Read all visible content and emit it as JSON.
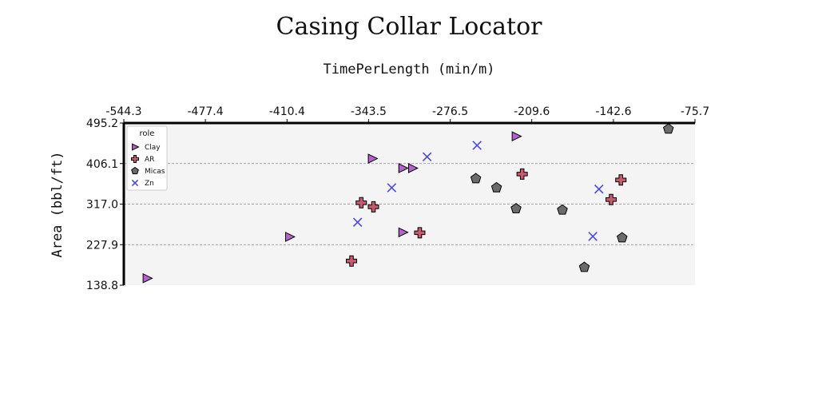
{
  "chart_data": {
    "type": "scatter",
    "title": "Casing Collar Locator",
    "xlabel": "TimePerLength (min/m)",
    "ylabel": "Area (bbl/ft)",
    "xlim": [
      -544.3,
      -75.7
    ],
    "ylim": [
      138.8,
      495.2
    ],
    "xticks": [
      "-544.3",
      "-477.4",
      "-410.4",
      "-343.5",
      "-276.5",
      "-209.6",
      "-142.6",
      "-75.7"
    ],
    "yticks": [
      "138.8",
      "227.9",
      "317.0",
      "406.1",
      "495.2"
    ],
    "x_axis_position": "top",
    "grid": "horizontal dashed",
    "legend": {
      "title": "role",
      "placement": "top-left"
    },
    "series": [
      {
        "name": "Clay",
        "marker": "triangle-right",
        "color": "#b660cd",
        "points": [
          [
            -525.3,
            154
          ],
          [
            -408.4,
            245
          ],
          [
            -340.5,
            417
          ],
          [
            -315.5,
            396
          ],
          [
            -307.5,
            396
          ],
          [
            -315.5,
            255
          ],
          [
            -222.5,
            466
          ]
        ]
      },
      {
        "name": "AR",
        "marker": "plus",
        "color": "#c85a6e",
        "points": [
          [
            -349.5,
            320
          ],
          [
            -339.5,
            311
          ],
          [
            -357.5,
            192
          ],
          [
            -301.5,
            254
          ],
          [
            -217.5,
            383
          ],
          [
            -136.5,
            370
          ],
          [
            -144.5,
            327
          ]
        ]
      },
      {
        "name": "Micas",
        "marker": "pentagon",
        "color": "#6b6b6b",
        "points": [
          [
            -255.5,
            373
          ],
          [
            -238.5,
            353
          ],
          [
            -222.5,
            307
          ],
          [
            -184.5,
            304
          ],
          [
            -166.5,
            178
          ],
          [
            -135.5,
            243
          ],
          [
            -97.5,
            482
          ]
        ]
      },
      {
        "name": "Zn",
        "marker": "x",
        "color": "#4a4ae0",
        "points": [
          [
            -295.5,
            421
          ],
          [
            -324.5,
            353
          ],
          [
            -352.5,
            277
          ],
          [
            -254.5,
            446
          ],
          [
            -154.5,
            350
          ],
          [
            -159.5,
            246
          ]
        ]
      }
    ]
  }
}
